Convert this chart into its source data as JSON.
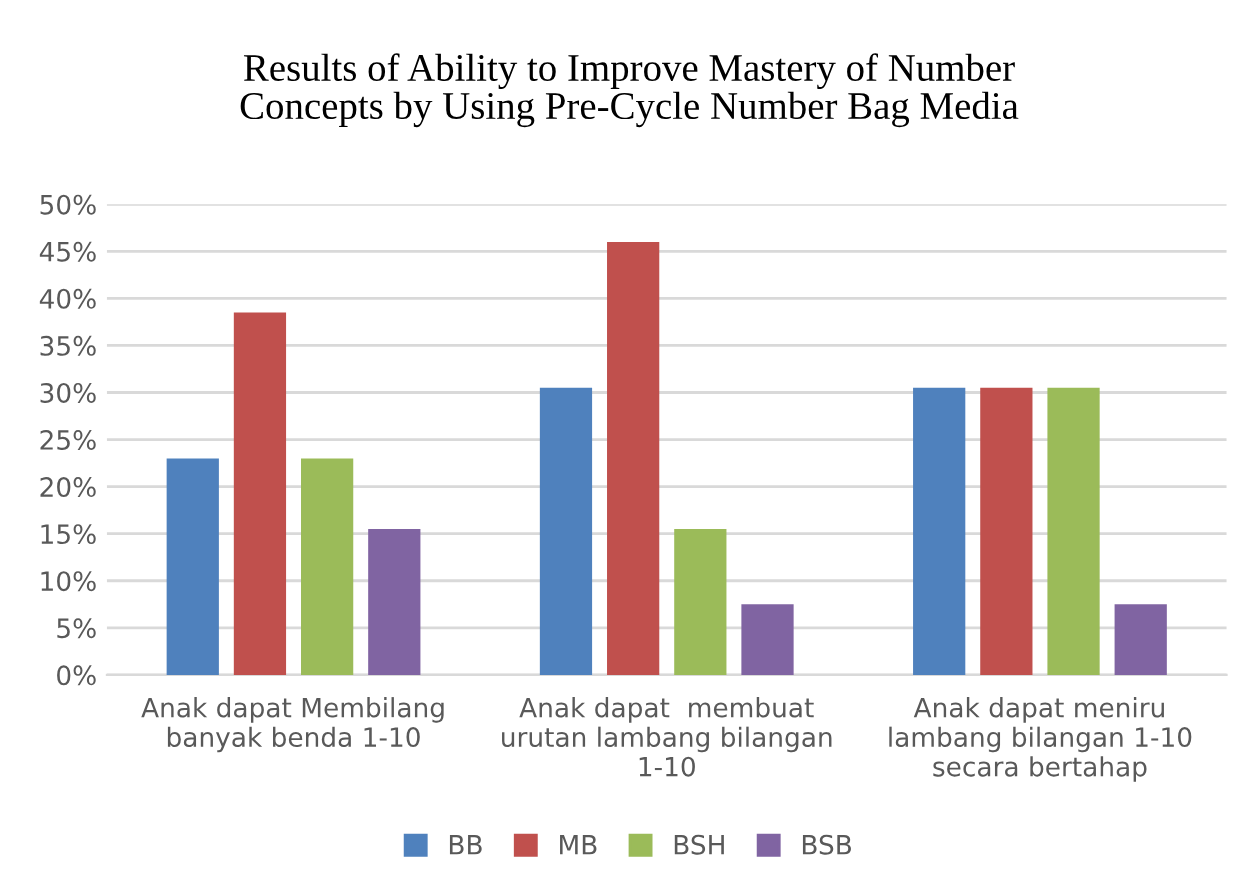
{
  "chart_data": {
    "type": "bar",
    "title": "Results of Ability to Improve Mastery of Number\nConcepts by Using Pre-Cycle Number Bag Media",
    "categories": [
      "Anak dapat Membilang\nbanyak benda 1-10",
      "Anak dapat  membuat\nurutan lambang bilangan\n1-10",
      "Anak dapat meniru\nlambang bilangan 1-10\nsecara bertahap"
    ],
    "series": [
      {
        "name": "BB",
        "color": "#4f81bd",
        "values": [
          23,
          30.5,
          30.5
        ]
      },
      {
        "name": "MB",
        "color": "#c0504d",
        "values": [
          38.5,
          46,
          30.5
        ]
      },
      {
        "name": "BSH",
        "color": "#9bbb59",
        "values": [
          23,
          15.5,
          30.5
        ]
      },
      {
        "name": "BSB",
        "color": "#8064a2",
        "values": [
          15.5,
          7.5,
          7.5
        ]
      }
    ],
    "ylim": [
      0,
      50
    ],
    "yticks": [
      {
        "value": 0,
        "label": "0%"
      },
      {
        "value": 5,
        "label": "5%"
      },
      {
        "value": 10,
        "label": "10%"
      },
      {
        "value": 15,
        "label": "15%"
      },
      {
        "value": 20,
        "label": "20%"
      },
      {
        "value": 25,
        "label": "25%"
      },
      {
        "value": 30,
        "label": "30%"
      },
      {
        "value": 35,
        "label": "35%"
      },
      {
        "value": 40,
        "label": "40%"
      },
      {
        "value": 45,
        "label": "45%"
      },
      {
        "value": 50,
        "label": "50%"
      }
    ],
    "grid": "y",
    "legend": "bottom"
  }
}
